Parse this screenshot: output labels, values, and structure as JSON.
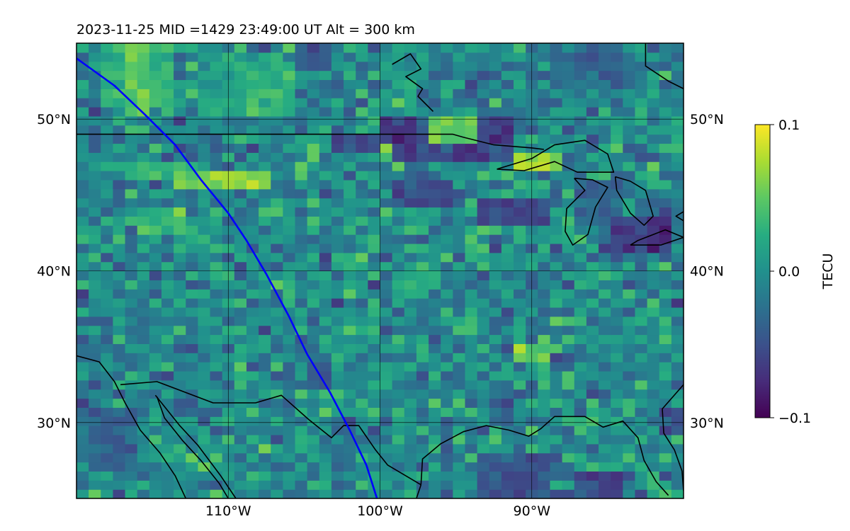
{
  "title": "2023-11-25  MID =1429    23:49:00  UT  Alt = 300 km",
  "chart_data": {
    "type": "heatmap",
    "title": "2023-11-25  MID =1429    23:49:00  UT  Alt = 300 km",
    "projection": "lon-lat",
    "xlim": [
      -120,
      -80
    ],
    "ylim": [
      25,
      55
    ],
    "x_ticks": [
      {
        "value": -110,
        "label": "110°W"
      },
      {
        "value": -100,
        "label": "100°W"
      },
      {
        "value": -90,
        "label": "90°W"
      }
    ],
    "y_ticks": [
      {
        "value": 50,
        "label": "50°N"
      },
      {
        "value": 40,
        "label": "40°N"
      },
      {
        "value": 30,
        "label": "30°N"
      }
    ],
    "grid": true,
    "colormap": "viridis",
    "colormap_colors": [
      "#440154",
      "#472c7a",
      "#3b518b",
      "#2c718e",
      "#21908d",
      "#27ad81",
      "#5cc863",
      "#aadc32",
      "#fde725"
    ],
    "colorbar": {
      "label": "TECU",
      "range": [
        -0.1,
        0.1
      ],
      "ticks": [
        {
          "value": 0.1,
          "label": "0.1"
        },
        {
          "value": 0.0,
          "label": "0.0"
        },
        {
          "value": -0.1,
          "label": "−0.1"
        }
      ]
    },
    "track_color": "#0000ff",
    "track": [
      [
        -120.0,
        54.0
      ],
      [
        -117.5,
        52.2
      ],
      [
        -115.5,
        50.3
      ],
      [
        -113.5,
        48.3
      ],
      [
        -111.8,
        46.0
      ],
      [
        -110.0,
        43.8
      ],
      [
        -108.8,
        42.0
      ],
      [
        -107.5,
        39.8
      ],
      [
        -106.0,
        37.0
      ],
      [
        -104.8,
        34.5
      ],
      [
        -103.3,
        32.0
      ],
      [
        -102.0,
        29.5
      ],
      [
        -100.9,
        27.2
      ],
      [
        -100.2,
        25.0
      ]
    ],
    "tiles": [
      {
        "lon": [
          -117,
          -115
        ],
        "lat": [
          50,
          55
        ],
        "value": 0.07
      },
      {
        "lon": [
          -118.5,
          -116.5
        ],
        "lat": [
          51,
          55
        ],
        "value": 0.045
      },
      {
        "lon": [
          -115,
          -113.5
        ],
        "lat": [
          51,
          55
        ],
        "value": 0.04
      },
      {
        "lon": [
          -112,
          -109
        ],
        "lat": [
          50.5,
          54.5
        ],
        "value": 0.025
      },
      {
        "lon": [
          -109,
          -106
        ],
        "lat": [
          50.5,
          54
        ],
        "value": 0.04
      },
      {
        "lon": [
          -114,
          -107
        ],
        "lat": [
          45.5,
          46.5
        ],
        "value": 0.09
      },
      {
        "lon": [
          -117,
          -112
        ],
        "lat": [
          46,
          47.5
        ],
        "value": 0.05
      },
      {
        "lon": [
          -116,
          -113
        ],
        "lat": [
          42.5,
          44
        ],
        "value": 0.05
      },
      {
        "lon": [
          -100,
          -91
        ],
        "lat": [
          47.5,
          50
        ],
        "value": -0.08
      },
      {
        "lon": [
          -96.5,
          -94
        ],
        "lat": [
          48.5,
          50
        ],
        "value": 0.1
      },
      {
        "lon": [
          -91,
          -88
        ],
        "lat": [
          46.5,
          48
        ],
        "value": 0.1
      },
      {
        "lon": [
          -100,
          -99
        ],
        "lat": [
          47.5,
          48.5
        ],
        "value": 0.1
      },
      {
        "lon": [
          -103,
          -100
        ],
        "lat": [
          48,
          49
        ],
        "value": -0.07
      },
      {
        "lon": [
          -99,
          -95
        ],
        "lat": [
          44,
          46
        ],
        "value": -0.07
      },
      {
        "lon": [
          -94,
          -89
        ],
        "lat": [
          43,
          45
        ],
        "value": -0.08
      },
      {
        "lon": [
          -85,
          -81
        ],
        "lat": [
          41.5,
          43.5
        ],
        "value": -0.09
      },
      {
        "lon": [
          -87,
          -84
        ],
        "lat": [
          43,
          46
        ],
        "value": -0.05
      },
      {
        "lon": [
          -106,
          -103
        ],
        "lat": [
          53,
          55
        ],
        "value": -0.06
      },
      {
        "lon": [
          -89,
          -84
        ],
        "lat": [
          52,
          55
        ],
        "value": -0.04
      },
      {
        "lon": [
          -119,
          -116
        ],
        "lat": [
          27,
          31
        ],
        "value": -0.05
      },
      {
        "lon": [
          -94,
          -89
        ],
        "lat": [
          25,
          28
        ],
        "value": -0.06
      },
      {
        "lon": [
          -87,
          -84
        ],
        "lat": [
          25,
          27
        ],
        "value": -0.08
      },
      {
        "lon": [
          -82,
          -80
        ],
        "lat": [
          29,
          31
        ],
        "value": -0.07
      },
      {
        "lon": [
          -103,
          -101
        ],
        "lat": [
          40,
          41
        ],
        "value": 0.05
      },
      {
        "lon": [
          -99,
          -97
        ],
        "lat": [
          38,
          40
        ],
        "value": 0.04
      },
      {
        "lon": [
          -91,
          -89
        ],
        "lat": [
          34,
          35
        ],
        "value": 0.07
      },
      {
        "lon": [
          -95,
          -94
        ],
        "lat": [
          36,
          37
        ],
        "value": 0.07
      },
      {
        "lon": [
          -113,
          -111
        ],
        "lat": [
          38,
          39
        ],
        "value": 0.06
      },
      {
        "lon": [
          -105,
          -103
        ],
        "lat": [
          32,
          34
        ],
        "value": -0.06
      },
      {
        "lon": [
          -93,
          -91
        ],
        "lat": [
          30,
          32
        ],
        "value": -0.05
      }
    ],
    "boundaries": [
      {
        "name": "us-canada-border",
        "points": [
          [
            -120,
            49
          ],
          [
            -95.2,
            49
          ],
          [
            -94.5,
            48.8
          ],
          [
            -92.5,
            48.3
          ],
          [
            -90,
            48.1
          ],
          [
            -89.2,
            48.0
          ]
        ]
      },
      {
        "name": "hudson-bay-coast",
        "points": [
          [
            -99.2,
            53.6
          ],
          [
            -98,
            54.3
          ],
          [
            -97.3,
            53.3
          ],
          [
            -98.3,
            52.8
          ],
          [
            -97.2,
            52.0
          ],
          [
            -97.5,
            51.5
          ],
          [
            -96.5,
            50.5
          ]
        ]
      },
      {
        "name": "lake-superior",
        "points": [
          [
            -92.3,
            46.7
          ],
          [
            -90,
            47.4
          ],
          [
            -88.5,
            48.3
          ],
          [
            -86.5,
            48.6
          ],
          [
            -85,
            47.7
          ],
          [
            -84.6,
            46.5
          ],
          [
            -87,
            46.5
          ],
          [
            -88.5,
            47.2
          ],
          [
            -90.5,
            46.6
          ],
          [
            -92.3,
            46.7
          ]
        ]
      },
      {
        "name": "lake-michigan",
        "points": [
          [
            -87.2,
            46.1
          ],
          [
            -86.5,
            45.3
          ],
          [
            -87.7,
            44.1
          ],
          [
            -87.8,
            42.6
          ],
          [
            -87.3,
            41.7
          ],
          [
            -86.3,
            42.4
          ],
          [
            -85.8,
            44.2
          ],
          [
            -85.0,
            45.5
          ],
          [
            -86.0,
            46.0
          ],
          [
            -87.2,
            46.1
          ]
        ]
      },
      {
        "name": "lake-huron",
        "points": [
          [
            -84.5,
            46.2
          ],
          [
            -83.5,
            45.9
          ],
          [
            -82.5,
            45.3
          ],
          [
            -82.0,
            43.6
          ],
          [
            -82.6,
            43.0
          ],
          [
            -83.5,
            43.8
          ],
          [
            -84.4,
            45.3
          ],
          [
            -84.5,
            46.2
          ]
        ]
      },
      {
        "name": "lake-erie",
        "points": [
          [
            -83.5,
            41.7
          ],
          [
            -81.5,
            41.7
          ],
          [
            -80,
            42.2
          ],
          [
            -81.2,
            42.7
          ],
          [
            -83.0,
            42.0
          ],
          [
            -83.5,
            41.7
          ]
        ]
      },
      {
        "name": "lake-ontario",
        "points": [
          [
            -80,
            43.3
          ],
          [
            -80.5,
            43.6
          ],
          [
            -80,
            43.9
          ]
        ]
      },
      {
        "name": "canada-east-coast",
        "points": [
          [
            -82.5,
            55
          ],
          [
            -82.5,
            53.5
          ],
          [
            -81,
            52.5
          ],
          [
            -80,
            52
          ]
        ]
      },
      {
        "name": "baja-california",
        "points": [
          [
            -120,
            34.4
          ],
          [
            -118.5,
            34
          ],
          [
            -117.5,
            32.7
          ],
          [
            -116.8,
            31.3
          ],
          [
            -115.8,
            29.5
          ],
          [
            -114.5,
            28
          ],
          [
            -113.5,
            26.5
          ],
          [
            -112.8,
            25
          ]
        ]
      },
      {
        "name": "us-mexico-border",
        "points": [
          [
            -117.1,
            32.5
          ],
          [
            -114.7,
            32.7
          ],
          [
            -111,
            31.3
          ],
          [
            -108.2,
            31.3
          ],
          [
            -106.5,
            31.8
          ],
          [
            -104.7,
            30.2
          ],
          [
            -103.2,
            29.0
          ],
          [
            -102.4,
            29.8
          ],
          [
            -101.4,
            29.8
          ],
          [
            -100.3,
            28.2
          ],
          [
            -99.5,
            27.2
          ],
          [
            -97.3,
            25.9
          ]
        ]
      },
      {
        "name": "gulf-of-california",
        "points": [
          [
            -114.7,
            31.7
          ],
          [
            -114.2,
            30.3
          ],
          [
            -113,
            28.8
          ],
          [
            -111.8,
            27.5
          ],
          [
            -110.6,
            26
          ],
          [
            -110.0,
            25
          ]
        ]
      },
      {
        "name": "sonora-coast",
        "points": [
          [
            -114.8,
            31.8
          ],
          [
            -113.2,
            29.8
          ],
          [
            -112,
            28.5
          ],
          [
            -110.5,
            26.5
          ],
          [
            -109.5,
            25
          ]
        ]
      },
      {
        "name": "gulf-coast",
        "points": [
          [
            -97.3,
            25.9
          ],
          [
            -97.2,
            27.6
          ],
          [
            -96,
            28.6
          ],
          [
            -94.5,
            29.4
          ],
          [
            -93,
            29.8
          ],
          [
            -91.5,
            29.5
          ],
          [
            -90.2,
            29.1
          ],
          [
            -89.4,
            29.6
          ],
          [
            -88.5,
            30.4
          ],
          [
            -86.5,
            30.4
          ],
          [
            -85.3,
            29.7
          ],
          [
            -84.0,
            30.1
          ],
          [
            -83.0,
            29.0
          ],
          [
            -82.6,
            27.5
          ],
          [
            -81.8,
            26.1
          ],
          [
            -81.0,
            25.2
          ]
        ]
      },
      {
        "name": "mexico-gulf-coast",
        "points": [
          [
            -97.3,
            25.9
          ],
          [
            -97.6,
            25.0
          ]
        ]
      },
      {
        "name": "atlantic-coast",
        "points": [
          [
            -80.0,
            32.5
          ],
          [
            -81.4,
            30.9
          ],
          [
            -81.3,
            29.3
          ],
          [
            -80.6,
            28.2
          ],
          [
            -80.1,
            26.8
          ],
          [
            -80.0,
            25.5
          ]
        ]
      }
    ]
  }
}
